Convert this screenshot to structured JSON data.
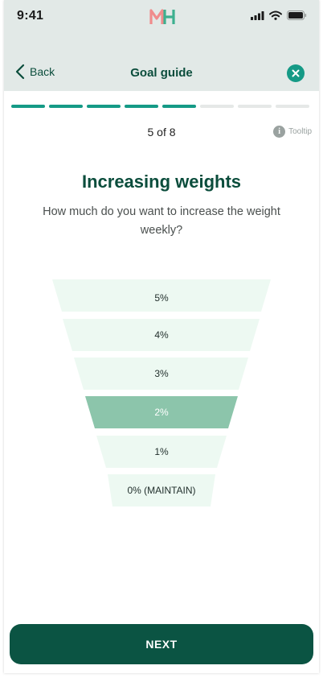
{
  "status_bar": {
    "time": "9:41"
  },
  "nav": {
    "back_label": "Back",
    "title": "Goal guide"
  },
  "progress": {
    "current": 5,
    "total": 8,
    "step_text": "5 of 8"
  },
  "tooltip": {
    "label": "Tooltip"
  },
  "question": {
    "title": "Increasing weights",
    "subtitle": "How much do you want to increase the weight weekly?"
  },
  "options": [
    {
      "label": "5%",
      "selected": false
    },
    {
      "label": "4%",
      "selected": false
    },
    {
      "label": "3%",
      "selected": false
    },
    {
      "label": "2%",
      "selected": true
    },
    {
      "label": "1%",
      "selected": false
    },
    {
      "label": "0% (MAINTAIN)",
      "selected": false
    }
  ],
  "colors": {
    "brand_dark": "#0b4d3c",
    "accent": "#159a86",
    "option_bg": "#edf9f2",
    "option_selected_bg": "#8cc5ab"
  },
  "icons": {
    "logo": "mh-logo",
    "back": "chevron-left-icon",
    "close": "close-icon",
    "tooltip": "info-icon",
    "status": [
      "signal-icon",
      "wifi-icon",
      "battery-icon"
    ]
  },
  "next_button": {
    "label": "NEXT"
  }
}
